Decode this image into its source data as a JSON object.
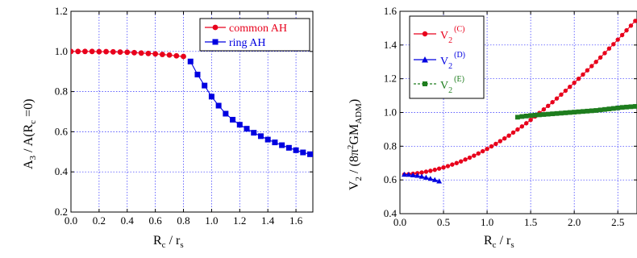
{
  "chart_data": [
    {
      "type": "line",
      "xlim": [
        0.0,
        1.72
      ],
      "ylim": [
        0.2,
        1.2
      ],
      "xticks": [
        "0.0",
        "0.2",
        "0.4",
        "0.6",
        "0.8",
        "1.0",
        "1.2",
        "1.4",
        "1.6"
      ],
      "yticks": [
        "0.2",
        "0.4",
        "0.6",
        "0.8",
        "1.0",
        "1.2"
      ],
      "xticks_v": [
        0.0,
        0.2,
        0.4,
        0.6,
        0.8,
        1.0,
        1.2,
        1.4,
        1.6
      ],
      "yticks_v": [
        0.2,
        0.4,
        0.6,
        0.8,
        1.0,
        1.2
      ],
      "xlabel": {
        "main1": "R",
        "sub1": "c",
        "main2": " / r",
        "sub2": "s"
      },
      "ylabel": {
        "a": "A",
        "b": "3",
        "c": " / A(R",
        "d": "c",
        "e": " =0)"
      },
      "grid": true,
      "legend_placement": "top-right",
      "series": [
        {
          "name": "common AH",
          "color": "#e8001c",
          "marker": "circle",
          "x": [
            0.0,
            0.05,
            0.1,
            0.15,
            0.2,
            0.25,
            0.3,
            0.35,
            0.4,
            0.45,
            0.5,
            0.55,
            0.6,
            0.65,
            0.7,
            0.75,
            0.8
          ],
          "y": [
            1.0,
            1.0,
            1.0,
            1.0,
            0.999,
            0.999,
            0.998,
            0.997,
            0.996,
            0.994,
            0.992,
            0.99,
            0.988,
            0.985,
            0.982,
            0.978,
            0.975
          ]
        },
        {
          "name": "ring AH",
          "color": "#0000e0",
          "marker": "square",
          "x": [
            0.85,
            0.9,
            0.95,
            1.0,
            1.05,
            1.1,
            1.15,
            1.2,
            1.25,
            1.3,
            1.35,
            1.4,
            1.45,
            1.5,
            1.55,
            1.6,
            1.65,
            1.7
          ],
          "y": [
            0.95,
            0.885,
            0.83,
            0.775,
            0.73,
            0.69,
            0.66,
            0.635,
            0.615,
            0.595,
            0.578,
            0.561,
            0.547,
            0.533,
            0.52,
            0.508,
            0.497,
            0.488
          ]
        }
      ]
    },
    {
      "type": "line",
      "xlim": [
        0.0,
        2.72
      ],
      "ylim": [
        0.4,
        1.6
      ],
      "xticks": [
        "0.0",
        "0.5",
        "1.0",
        "1.5",
        "2.0",
        "2.5"
      ],
      "yticks": [
        "0.4",
        "0.6",
        "0.8",
        "1.0",
        "1.2",
        "1.4",
        "1.6"
      ],
      "xticks_v": [
        0.0,
        0.5,
        1.0,
        1.5,
        2.0,
        2.5
      ],
      "yticks_v": [
        0.4,
        0.6,
        0.8,
        1.0,
        1.2,
        1.4,
        1.6
      ],
      "xlabel": {
        "main1": "R",
        "sub1": "c",
        "main2": " / r",
        "sub2": "s"
      },
      "ylabel": {
        "a": "V",
        "b": "2",
        "c": " / (8π",
        "d": "2",
        "e": "GM",
        "f": "ADM",
        "g": ")"
      },
      "grid": true,
      "legend_placement": "top-left",
      "series": [
        {
          "name": "V",
          "sub": "2",
          "sup": "(C)",
          "color": "#e8001c",
          "marker": "circle",
          "x": [
            0.05,
            0.1,
            0.15,
            0.2,
            0.25,
            0.3,
            0.35,
            0.4,
            0.45,
            0.5,
            0.55,
            0.6,
            0.65,
            0.7,
            0.75,
            0.8,
            0.85,
            0.9,
            0.95,
            1.0,
            1.05,
            1.1,
            1.15,
            1.2,
            1.25,
            1.3,
            1.35,
            1.4,
            1.45,
            1.5,
            1.55,
            1.6,
            1.65,
            1.7,
            1.75,
            1.8,
            1.85,
            1.9,
            1.95,
            2.0,
            2.05,
            2.1,
            2.15,
            2.2,
            2.25,
            2.3,
            2.35,
            2.4,
            2.45,
            2.5,
            2.55,
            2.6,
            2.65,
            2.7
          ],
          "y": [
            0.632,
            0.634,
            0.637,
            0.64,
            0.644,
            0.649,
            0.654,
            0.66,
            0.667,
            0.674,
            0.682,
            0.691,
            0.7,
            0.71,
            0.721,
            0.732,
            0.744,
            0.757,
            0.77,
            0.784,
            0.799,
            0.814,
            0.83,
            0.846,
            0.863,
            0.881,
            0.899,
            0.917,
            0.936,
            0.956,
            0.976,
            0.997,
            1.018,
            1.039,
            1.061,
            1.083,
            1.106,
            1.129,
            1.152,
            1.176,
            1.2,
            1.225,
            1.25,
            1.275,
            1.3,
            1.326,
            1.352,
            1.379,
            1.405,
            1.432,
            1.459,
            1.487,
            1.515,
            1.543
          ]
        },
        {
          "name": "V",
          "sub": "2",
          "sup": "(D)",
          "color": "#0000e0",
          "marker": "triangle",
          "x": [
            0.05,
            0.1,
            0.15,
            0.2,
            0.25,
            0.3,
            0.35,
            0.4,
            0.45
          ],
          "y": [
            0.632,
            0.631,
            0.628,
            0.625,
            0.62,
            0.614,
            0.607,
            0.6,
            0.592
          ]
        },
        {
          "name": "V",
          "sub": "2",
          "sup": "(E)",
          "color": "#1e7d1e",
          "marker": "square",
          "x": [
            1.35,
            1.4,
            1.45,
            1.5,
            1.55,
            1.6,
            1.65,
            1.7,
            1.75,
            1.8,
            1.85,
            1.9,
            1.95,
            2.0,
            2.05,
            2.1,
            2.15,
            2.2,
            2.25,
            2.3,
            2.35,
            2.4,
            2.45,
            2.5,
            2.55,
            2.6,
            2.65,
            2.7
          ],
          "y": [
            0.972,
            0.976,
            0.979,
            0.982,
            0.984,
            0.986,
            0.988,
            0.99,
            0.992,
            0.994,
            0.996,
            0.998,
            1.0,
            1.002,
            1.004,
            1.006,
            1.008,
            1.01,
            1.012,
            1.015,
            1.018,
            1.021,
            1.024,
            1.027,
            1.03,
            1.032,
            1.034,
            1.036
          ]
        }
      ]
    }
  ]
}
